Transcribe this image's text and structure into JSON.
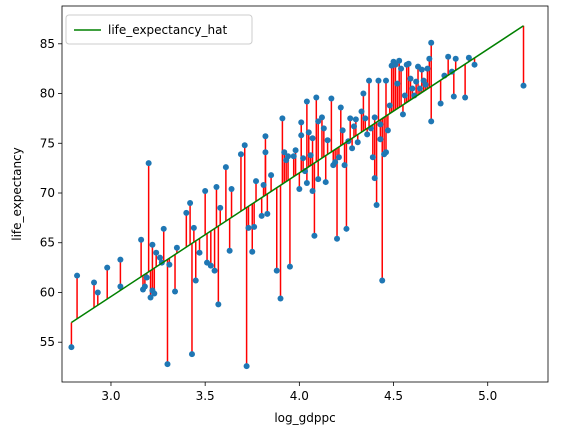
{
  "chart_data": {
    "type": "scatter",
    "title": "",
    "xlabel": "log_gdppc",
    "ylabel": "life_expectancy",
    "xlim": [
      2.74,
      5.32
    ],
    "ylim": [
      51.0,
      88.8
    ],
    "xticks": [
      3.0,
      3.5,
      4.0,
      4.5,
      5.0
    ],
    "xtick_labels": [
      "3.0",
      "3.5",
      "4.0",
      "4.5",
      "5.0"
    ],
    "yticks": [
      55,
      60,
      65,
      70,
      75,
      80,
      85
    ],
    "ytick_labels": [
      "55",
      "60",
      "65",
      "70",
      "75",
      "80",
      "85"
    ],
    "grid": false,
    "legend": {
      "position": "top-left",
      "entries": [
        "life_expectancy_hat"
      ]
    },
    "fit": {
      "name": "life_expectancy_hat",
      "intercept": 22.3,
      "slope": 12.43,
      "x_range": [
        2.79,
        5.19
      ],
      "color": "#008000"
    },
    "residual_color": "#ff0000",
    "point_color": "#1f77b4",
    "points": [
      [
        2.79,
        54.5
      ],
      [
        2.82,
        61.7
      ],
      [
        2.91,
        61.0
      ],
      [
        2.93,
        60.0
      ],
      [
        2.98,
        62.5
      ],
      [
        3.05,
        63.3
      ],
      [
        3.05,
        60.6
      ],
      [
        3.16,
        65.3
      ],
      [
        3.17,
        60.3
      ],
      [
        3.18,
        60.6
      ],
      [
        3.19,
        61.5
      ],
      [
        3.2,
        73.0
      ],
      [
        3.21,
        59.5
      ],
      [
        3.22,
        64.8
      ],
      [
        3.22,
        60.2
      ],
      [
        3.23,
        59.9
      ],
      [
        3.24,
        64.0
      ],
      [
        3.26,
        63.5
      ],
      [
        3.27,
        63.0
      ],
      [
        3.28,
        66.4
      ],
      [
        3.3,
        52.8
      ],
      [
        3.31,
        62.8
      ],
      [
        3.34,
        60.1
      ],
      [
        3.35,
        64.5
      ],
      [
        3.4,
        68.0
      ],
      [
        3.42,
        69.0
      ],
      [
        3.43,
        53.8
      ],
      [
        3.44,
        66.5
      ],
      [
        3.45,
        61.2
      ],
      [
        3.47,
        64.0
      ],
      [
        3.5,
        70.2
      ],
      [
        3.51,
        63.0
      ],
      [
        3.53,
        62.7
      ],
      [
        3.55,
        62.2
      ],
      [
        3.56,
        70.6
      ],
      [
        3.57,
        58.8
      ],
      [
        3.58,
        68.5
      ],
      [
        3.61,
        72.6
      ],
      [
        3.63,
        64.2
      ],
      [
        3.64,
        70.4
      ],
      [
        3.69,
        73.9
      ],
      [
        3.71,
        74.8
      ],
      [
        3.72,
        52.6
      ],
      [
        3.73,
        66.5
      ],
      [
        3.75,
        64.1
      ],
      [
        3.76,
        66.6
      ],
      [
        3.77,
        71.2
      ],
      [
        3.8,
        67.7
      ],
      [
        3.81,
        70.8
      ],
      [
        3.82,
        75.7
      ],
      [
        3.82,
        74.1
      ],
      [
        3.83,
        67.9
      ],
      [
        3.85,
        71.8
      ],
      [
        3.88,
        62.2
      ],
      [
        3.9,
        59.4
      ],
      [
        3.91,
        77.5
      ],
      [
        3.92,
        74.1
      ],
      [
        3.93,
        73.3
      ],
      [
        3.94,
        73.7
      ],
      [
        3.95,
        62.6
      ],
      [
        3.97,
        73.7
      ],
      [
        3.98,
        74.3
      ],
      [
        4.0,
        70.4
      ],
      [
        4.01,
        77.1
      ],
      [
        4.01,
        75.8
      ],
      [
        4.02,
        73.5
      ],
      [
        4.03,
        72.2
      ],
      [
        4.04,
        79.2
      ],
      [
        4.04,
        71.0
      ],
      [
        4.05,
        76.1
      ],
      [
        4.06,
        73.8
      ],
      [
        4.07,
        70.2
      ],
      [
        4.07,
        75.5
      ],
      [
        4.08,
        65.7
      ],
      [
        4.09,
        79.6
      ],
      [
        4.1,
        77.2
      ],
      [
        4.1,
        71.4
      ],
      [
        4.12,
        77.6
      ],
      [
        4.13,
        76.5
      ],
      [
        4.14,
        71.1
      ],
      [
        4.15,
        75.3
      ],
      [
        4.17,
        79.5
      ],
      [
        4.18,
        72.8
      ],
      [
        4.19,
        73.1
      ],
      [
        4.2,
        65.4
      ],
      [
        4.21,
        73.6
      ],
      [
        4.22,
        78.6
      ],
      [
        4.23,
        76.3
      ],
      [
        4.24,
        72.8
      ],
      [
        4.25,
        66.4
      ],
      [
        4.26,
        75.2
      ],
      [
        4.27,
        77.5
      ],
      [
        4.28,
        74.5
      ],
      [
        4.29,
        76.7
      ],
      [
        4.3,
        77.4
      ],
      [
        4.31,
        75.1
      ],
      [
        4.33,
        78.2
      ],
      [
        4.34,
        80.0
      ],
      [
        4.35,
        77.5
      ],
      [
        4.36,
        75.9
      ],
      [
        4.37,
        81.3
      ],
      [
        4.38,
        76.5
      ],
      [
        4.39,
        73.6
      ],
      [
        4.4,
        71.5
      ],
      [
        4.4,
        77.6
      ],
      [
        4.41,
        68.8
      ],
      [
        4.42,
        81.3
      ],
      [
        4.43,
        75.4
      ],
      [
        4.43,
        76.9
      ],
      [
        4.44,
        61.2
      ],
      [
        4.45,
        73.9
      ],
      [
        4.46,
        81.3
      ],
      [
        4.46,
        74.1
      ],
      [
        4.47,
        76.3
      ],
      [
        4.48,
        78.8
      ],
      [
        4.49,
        82.8
      ],
      [
        4.5,
        83.2
      ],
      [
        4.51,
        82.9
      ],
      [
        4.52,
        81.0
      ],
      [
        4.53,
        83.3
      ],
      [
        4.54,
        82.5
      ],
      [
        4.55,
        77.9
      ],
      [
        4.56,
        79.8
      ],
      [
        4.57,
        82.9
      ],
      [
        4.58,
        83.0
      ],
      [
        4.59,
        81.5
      ],
      [
        4.6,
        80.5
      ],
      [
        4.61,
        79.8
      ],
      [
        4.62,
        81.2
      ],
      [
        4.63,
        82.7
      ],
      [
        4.64,
        80.5
      ],
      [
        4.65,
        82.4
      ],
      [
        4.66,
        81.3
      ],
      [
        4.67,
        80.9
      ],
      [
        4.68,
        82.5
      ],
      [
        4.69,
        83.5
      ],
      [
        4.7,
        77.2
      ],
      [
        4.7,
        85.1
      ],
      [
        4.75,
        79.0
      ],
      [
        4.77,
        81.8
      ],
      [
        4.79,
        83.7
      ],
      [
        4.81,
        82.2
      ],
      [
        4.82,
        79.7
      ],
      [
        4.83,
        83.5
      ],
      [
        4.88,
        79.6
      ],
      [
        4.9,
        83.6
      ],
      [
        4.93,
        82.9
      ],
      [
        5.19,
        80.8
      ]
    ]
  }
}
